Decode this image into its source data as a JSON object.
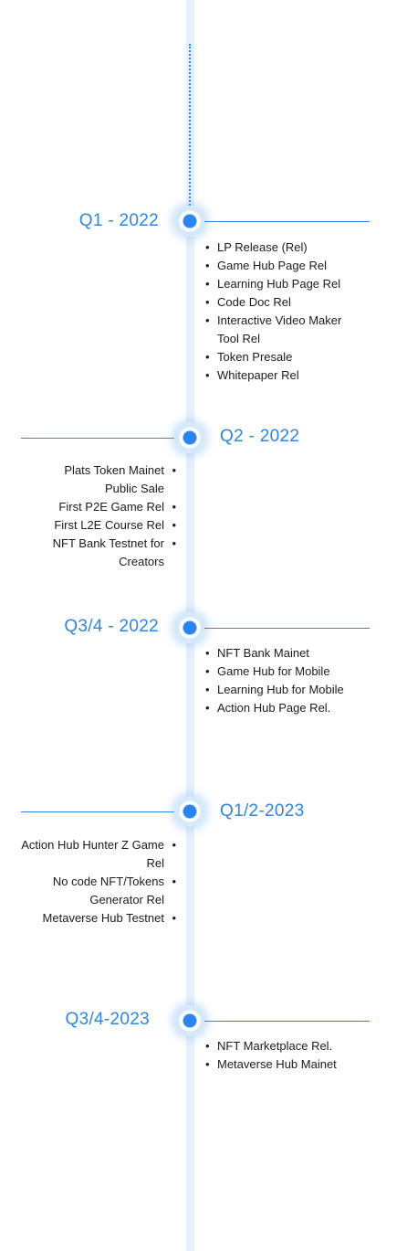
{
  "milestones": [
    {
      "label": "Q1 - 2022",
      "items": [
        "LP Release (Rel)",
        "Game Hub Page Rel",
        "Learning Hub Page Rel",
        "Code Doc Rel",
        "Interactive Video Maker Tool Rel",
        "Token Presale",
        "Whitepaper Rel"
      ]
    },
    {
      "label": "Q2 - 2022",
      "items": [
        "Plats Token Mainet Public Sale",
        "First P2E Game Rel",
        "First L2E Course Rel",
        "NFT Bank Testnet for Creators"
      ]
    },
    {
      "label": "Q3/4 - 2022",
      "items": [
        "NFT Bank Mainet",
        "Game Hub for Mobile",
        "Learning Hub for Mobile",
        "Action Hub Page Rel."
      ]
    },
    {
      "label": "Q1/2-2023",
      "items": [
        "Action Hub Hunter Z Game Rel",
        "No code NFT/Tokens Generator Rel",
        "Metaverse Hub Testnet"
      ]
    },
    {
      "label": "Q3/4-2023",
      "items": [
        "NFT Marketplace Rel.",
        "Metaverse Hub Mainet"
      ]
    }
  ],
  "colors": {
    "accent": "#2f86e0",
    "node": "#2a86ee",
    "track": "#e6f0fb",
    "text": "#1c1c1c"
  }
}
